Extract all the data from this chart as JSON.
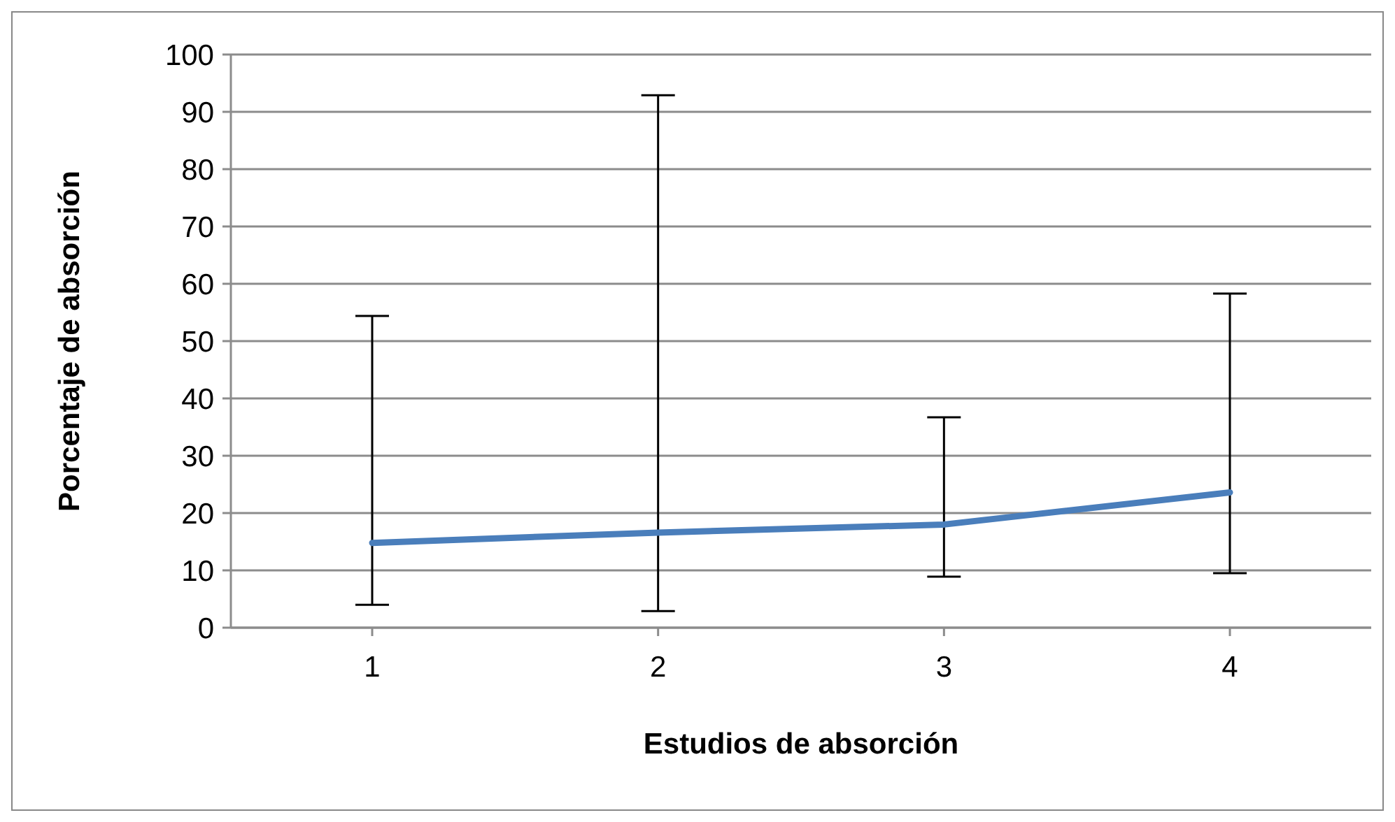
{
  "chart_data": {
    "type": "line",
    "xlabel": "Estudios de absorción",
    "ylabel": "Porcentaje de absorción",
    "categories": [
      "1",
      "2",
      "3",
      "4"
    ],
    "series": [
      {
        "color": "#4a7ebb",
        "values": [
          14.8,
          16.6,
          18.0,
          23.6
        ],
        "errors": [
          [
            4.0,
            54.4
          ],
          [
            2.9,
            92.9
          ],
          [
            8.9,
            36.7
          ],
          [
            9.5,
            58.3
          ]
        ]
      }
    ],
    "ylim": [
      0,
      100
    ],
    "yticks": [
      0,
      10,
      20,
      30,
      40,
      50,
      60,
      70,
      80,
      90,
      100
    ],
    "grid": "y",
    "marker": "none",
    "line_style": "solid"
  }
}
